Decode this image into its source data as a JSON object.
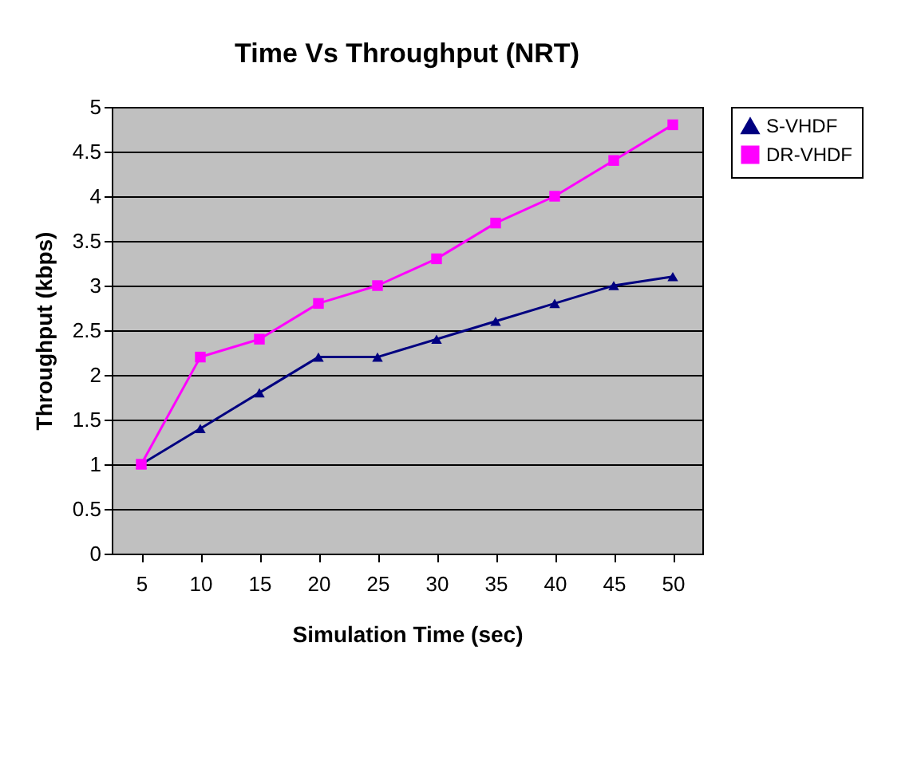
{
  "chart_data": {
    "type": "line",
    "title": "Time Vs Throughput (NRT)",
    "xlabel": "Simulation Time (sec)",
    "ylabel": "Throughput (kbps)",
    "categories": [
      "5",
      "10",
      "15",
      "20",
      "25",
      "30",
      "35",
      "40",
      "45",
      "50"
    ],
    "series": [
      {
        "name": "S-VHDF",
        "color": "#000080",
        "marker": "triangle",
        "values": [
          1,
          1.4,
          1.8,
          2.2,
          2.2,
          2.4,
          2.6,
          2.8,
          3.0,
          3.1
        ]
      },
      {
        "name": "DR-VHDF",
        "color": "#ff00ff",
        "marker": "square",
        "values": [
          1,
          2.2,
          2.4,
          2.8,
          3.0,
          3.3,
          3.7,
          4.0,
          4.4,
          4.8
        ]
      }
    ],
    "ylim": [
      0,
      5
    ],
    "yticks": [
      0,
      0.5,
      1,
      1.5,
      2,
      2.5,
      3,
      3.5,
      4,
      4.5,
      5
    ],
    "grid": "y",
    "legend": "right"
  }
}
